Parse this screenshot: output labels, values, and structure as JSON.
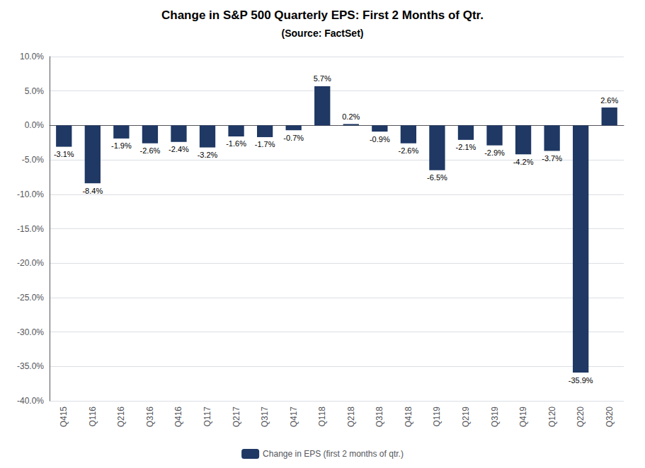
{
  "chart_data": {
    "type": "bar",
    "title": "Change in S&P 500 Quarterly EPS: First 2 Months of Qtr.",
    "subtitle": "(Source: FactSet)",
    "categories": [
      "Q415",
      "Q116",
      "Q216",
      "Q316",
      "Q416",
      "Q117",
      "Q217",
      "Q317",
      "Q417",
      "Q118",
      "Q218",
      "Q318",
      "Q418",
      "Q119",
      "Q219",
      "Q319",
      "Q419",
      "Q120",
      "Q220",
      "Q320"
    ],
    "series": [
      {
        "name": "Change in EPS (first 2 months of qtr.)",
        "color": "#1F3864",
        "values": [
          -3.1,
          -8.4,
          -1.9,
          -2.6,
          -2.4,
          -3.2,
          -1.6,
          -1.7,
          -0.7,
          5.7,
          0.2,
          -0.9,
          -2.6,
          -6.5,
          -2.1,
          -2.9,
          -4.2,
          -3.7,
          -35.9,
          2.6
        ],
        "value_labels": [
          "-3.1%",
          "-8.4%",
          "-1.9%",
          "-2.6%",
          "-2.4%",
          "-3.2%",
          "-1.6%",
          "-1.7%",
          "-0.7%",
          "5.7%",
          "0.2%",
          "-0.9%",
          "-2.6%",
          "-6.5%",
          "-2.1%",
          "-2.9%",
          "-4.2%",
          "-3.7%",
          "-35.9%",
          "2.6%"
        ]
      }
    ],
    "ylim": [
      -40.0,
      10.0
    ],
    "yticks": [
      {
        "value": 10.0,
        "label": "10.0%"
      },
      {
        "value": 5.0,
        "label": "5.0%"
      },
      {
        "value": 0.0,
        "label": "0.0%"
      },
      {
        "value": -5.0,
        "label": "-5.0%"
      },
      {
        "value": -10.0,
        "label": "-10.0%"
      },
      {
        "value": -15.0,
        "label": "-15.0%"
      },
      {
        "value": -20.0,
        "label": "-20.0%"
      },
      {
        "value": -25.0,
        "label": "-25.0%"
      },
      {
        "value": -30.0,
        "label": "-30.0%"
      },
      {
        "value": -35.0,
        "label": "-35.0%"
      },
      {
        "value": -40.0,
        "label": "-40.0%"
      }
    ],
    "grid": true,
    "legend": "bottom",
    "data_labels": true
  }
}
